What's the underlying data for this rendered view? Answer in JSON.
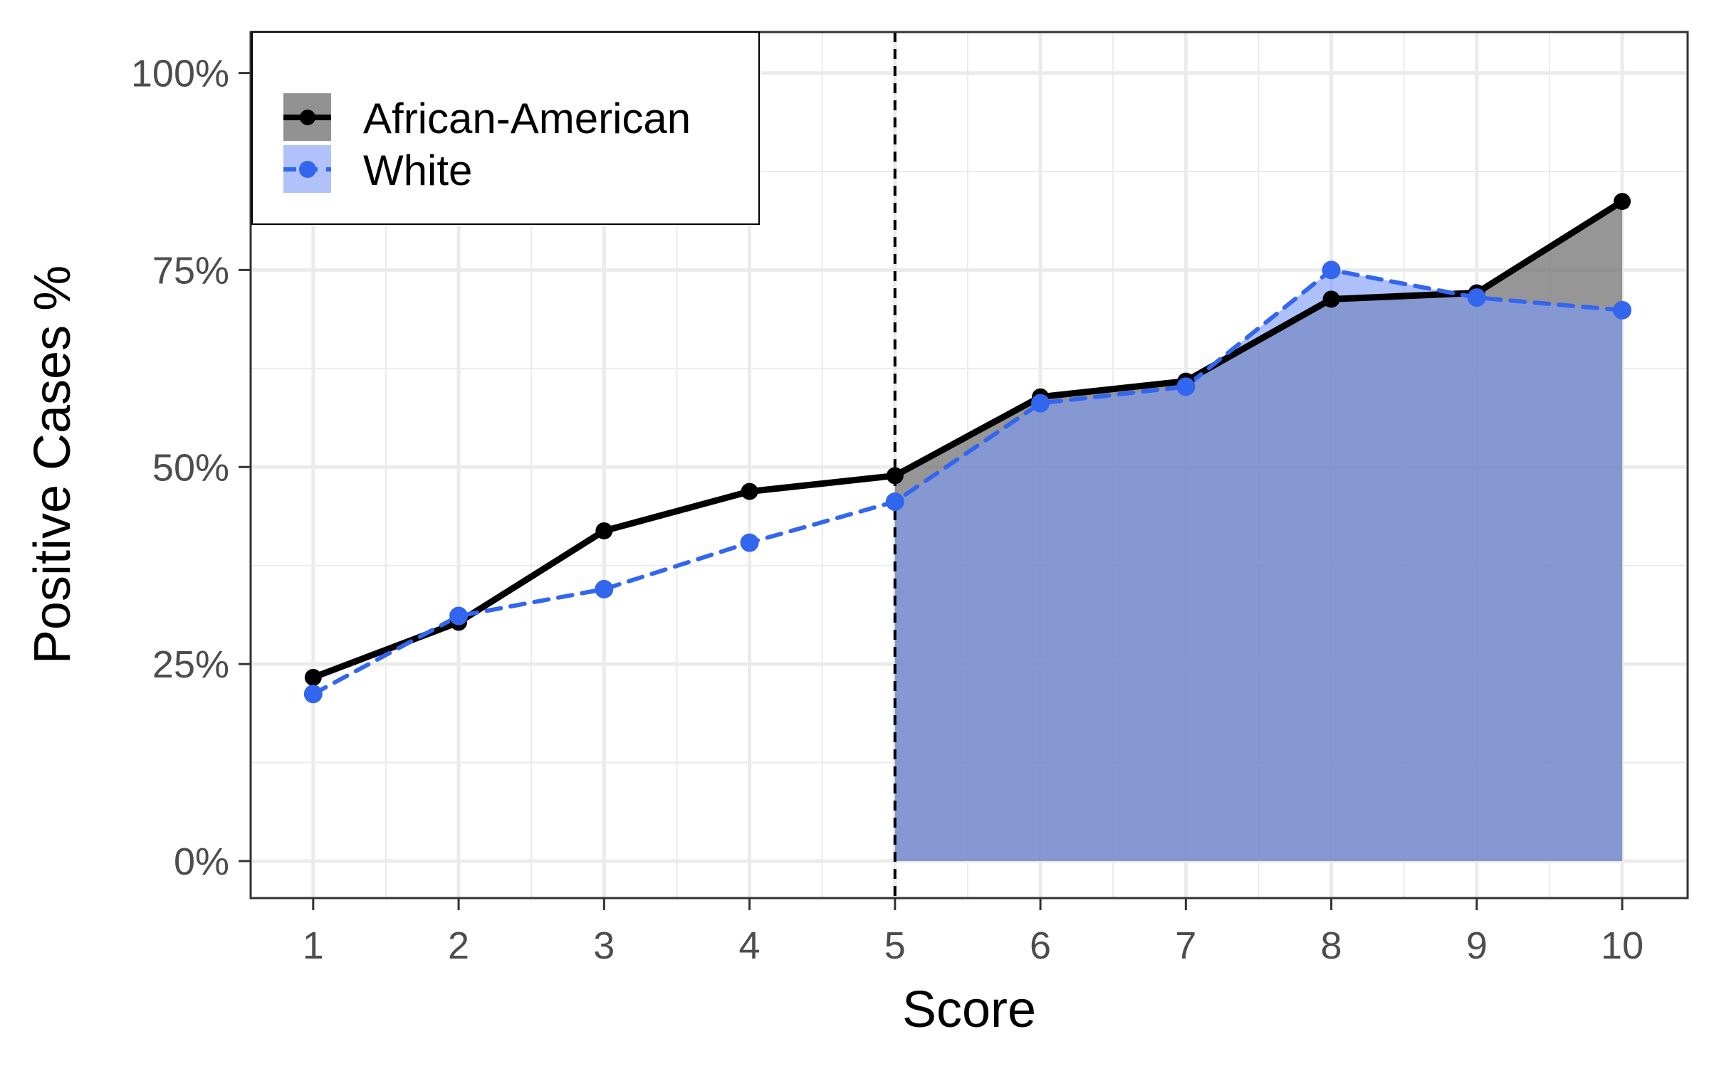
{
  "chart_data": {
    "type": "line",
    "xlabel": "Score",
    "ylabel": "Positive Cases %",
    "x": [
      1,
      2,
      3,
      4,
      5,
      6,
      7,
      8,
      9,
      10
    ],
    "xlim": [
      0.57,
      10.45
    ],
    "ylim": [
      -0.047,
      1.052
    ],
    "x_ticks": [
      1,
      2,
      3,
      4,
      5,
      6,
      7,
      8,
      9,
      10
    ],
    "y_ticks": [
      0,
      0.25,
      0.5,
      0.75,
      1.0
    ],
    "y_tick_labels": [
      "0%",
      "25%",
      "50%",
      "75%",
      "100%"
    ],
    "reference_line": {
      "x": 5,
      "style": "dashed"
    },
    "shaded_from_x": 5,
    "grid": true,
    "legend_position": "top-left",
    "series": [
      {
        "name": "African-American",
        "values": [
          0.233,
          0.303,
          0.419,
          0.469,
          0.489,
          0.589,
          0.609,
          0.713,
          0.721,
          0.837
        ],
        "color": "#000000",
        "line_style": "solid",
        "fill_color": "#6e6e6e"
      },
      {
        "name": "White",
        "values": [
          0.212,
          0.311,
          0.345,
          0.404,
          0.456,
          0.581,
          0.602,
          0.75,
          0.715,
          0.699
        ],
        "color": "#3366ee",
        "line_style": "dashed",
        "fill_color": "#7b9af5"
      }
    ]
  }
}
